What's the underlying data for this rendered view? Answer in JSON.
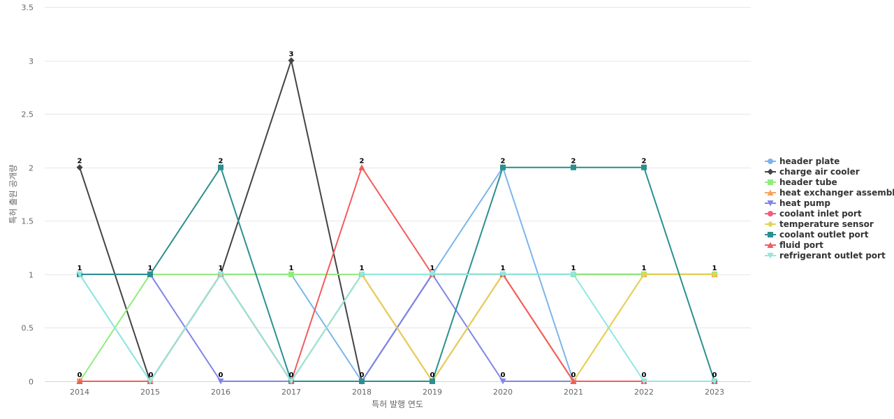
{
  "chart_data": {
    "type": "line",
    "x": [
      "2014",
      "2015",
      "2016",
      "2017",
      "2018",
      "2019",
      "2020",
      "2021",
      "2022",
      "2023"
    ],
    "xlabel": "특허 발행 연도",
    "ylabel": "특허 출원 공개량",
    "ylim": [
      0,
      3.5
    ],
    "yticks": [
      "0",
      "0.5",
      "1",
      "1.5",
      "2",
      "2.5",
      "3",
      "3.5"
    ],
    "grid": true,
    "legend_position": "right",
    "series": [
      {
        "name": "header plate",
        "color": "#7cb5ec",
        "marker": "circle",
        "values": [
          1,
          0,
          1,
          1,
          0,
          1,
          2,
          0,
          0,
          0
        ]
      },
      {
        "name": "charge air cooler",
        "color": "#434348",
        "marker": "diamond",
        "values": [
          2,
          0,
          1,
          3,
          0,
          1,
          1,
          1,
          1,
          1
        ]
      },
      {
        "name": "header tube",
        "color": "#90ed7d",
        "marker": "square",
        "values": [
          0,
          1,
          1,
          1,
          1,
          1,
          1,
          1,
          1,
          1
        ]
      },
      {
        "name": "heat exchanger assembly",
        "color": "#f7a35c",
        "marker": "triangle",
        "values": [
          0,
          0,
          1,
          0,
          1,
          0,
          1,
          0,
          1,
          1
        ]
      },
      {
        "name": "heat pump",
        "color": "#8085e9",
        "marker": "triangle-down",
        "values": [
          1,
          1,
          0,
          0,
          0,
          1,
          0,
          0,
          0,
          0
        ]
      },
      {
        "name": "coolant inlet port",
        "color": "#f15c80",
        "marker": "circle",
        "values": [
          0,
          0,
          1,
          0,
          1,
          0,
          1,
          0,
          0,
          0
        ]
      },
      {
        "name": "temperature sensor",
        "color": "#e4d354",
        "marker": "diamond",
        "values": [
          0,
          0,
          1,
          0,
          1,
          0,
          1,
          0,
          1,
          1
        ]
      },
      {
        "name": "coolant outlet port",
        "color": "#2b908f",
        "marker": "square",
        "values": [
          1,
          1,
          2,
          0,
          0,
          0,
          2,
          2,
          2,
          0
        ]
      },
      {
        "name": "fluid port",
        "color": "#f45b5b",
        "marker": "triangle",
        "values": [
          0,
          0,
          1,
          0,
          2,
          1,
          1,
          0,
          0,
          0
        ]
      },
      {
        "name": "refrigerant outlet port",
        "color": "#91e8e1",
        "marker": "triangle-down",
        "values": [
          1,
          0,
          1,
          0,
          1,
          1,
          1,
          1,
          0,
          0
        ]
      }
    ],
    "data_labels": [
      2,
      0,
      2,
      3,
      2,
      0,
      2,
      2,
      2,
      0
    ]
  }
}
